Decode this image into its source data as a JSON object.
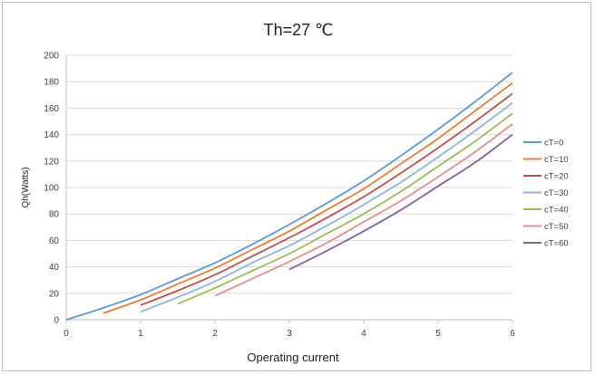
{
  "chart_data": {
    "type": "line",
    "title": "Th=27 ℃",
    "xlabel": "Operating current",
    "ylabel": "Qh(Watts)",
    "xlim": [
      0,
      6
    ],
    "ylim": [
      0,
      200
    ],
    "x_ticks": [
      0,
      1,
      2,
      3,
      4,
      5,
      6
    ],
    "y_ticks": [
      0,
      20,
      40,
      60,
      80,
      100,
      120,
      140,
      160,
      180,
      200
    ],
    "grid": "horizontal",
    "legend_position": "right",
    "series": [
      {
        "name": "cT=0",
        "color": "#5b9bd5",
        "points": [
          [
            0,
            0
          ],
          [
            0.5,
            9
          ],
          [
            1,
            19
          ],
          [
            1.5,
            31
          ],
          [
            2,
            43
          ],
          [
            2.5,
            57
          ],
          [
            3,
            72
          ],
          [
            3.5,
            88
          ],
          [
            4,
            105
          ],
          [
            4.5,
            124
          ],
          [
            5,
            144
          ],
          [
            5.5,
            165
          ],
          [
            6,
            187
          ]
        ]
      },
      {
        "name": "cT=10",
        "color": "#ed7d31",
        "points": [
          [
            0.5,
            5
          ],
          [
            1,
            15
          ],
          [
            1.5,
            27
          ],
          [
            2,
            39
          ],
          [
            2.5,
            53
          ],
          [
            3,
            67
          ],
          [
            3.5,
            83
          ],
          [
            4,
            99
          ],
          [
            4.5,
            118
          ],
          [
            5,
            137
          ],
          [
            5.5,
            158
          ],
          [
            6,
            179
          ]
        ]
      },
      {
        "name": "cT=20",
        "color": "#c0504d",
        "points": [
          [
            1,
            11
          ],
          [
            1.5,
            22
          ],
          [
            2,
            34
          ],
          [
            2.5,
            48
          ],
          [
            3,
            62
          ],
          [
            3.5,
            77
          ],
          [
            4,
            93
          ],
          [
            4.5,
            111
          ],
          [
            5,
            130
          ],
          [
            5.5,
            150
          ],
          [
            6,
            171
          ]
        ]
      },
      {
        "name": "cT=30",
        "color": "#8eb4e3",
        "points": [
          [
            1,
            6
          ],
          [
            1.5,
            17
          ],
          [
            2,
            29
          ],
          [
            2.5,
            43
          ],
          [
            3,
            56
          ],
          [
            3.5,
            71
          ],
          [
            4,
            87
          ],
          [
            4.5,
            104
          ],
          [
            5,
            123
          ],
          [
            5.5,
            143
          ],
          [
            6,
            164
          ]
        ]
      },
      {
        "name": "cT=40",
        "color": "#9bbb59",
        "points": [
          [
            1.5,
            12
          ],
          [
            2,
            24
          ],
          [
            2.5,
            37
          ],
          [
            3,
            50
          ],
          [
            3.5,
            65
          ],
          [
            4,
            80
          ],
          [
            4.5,
            97
          ],
          [
            5,
            116
          ],
          [
            5.5,
            135
          ],
          [
            6,
            156
          ]
        ]
      },
      {
        "name": "cT=50",
        "color": "#e6908e",
        "points": [
          [
            2,
            18
          ],
          [
            2.5,
            31
          ],
          [
            3,
            44
          ],
          [
            3.5,
            58
          ],
          [
            4,
            74
          ],
          [
            4.5,
            90
          ],
          [
            5,
            108
          ],
          [
            5.5,
            127
          ],
          [
            6,
            148
          ]
        ]
      },
      {
        "name": "cT=60",
        "color": "#8064a2",
        "points": [
          [
            3,
            38
          ],
          [
            3.5,
            52
          ],
          [
            4,
            67
          ],
          [
            4.5,
            83
          ],
          [
            5,
            101
          ],
          [
            5.5,
            119
          ],
          [
            6,
            140
          ]
        ]
      }
    ]
  }
}
